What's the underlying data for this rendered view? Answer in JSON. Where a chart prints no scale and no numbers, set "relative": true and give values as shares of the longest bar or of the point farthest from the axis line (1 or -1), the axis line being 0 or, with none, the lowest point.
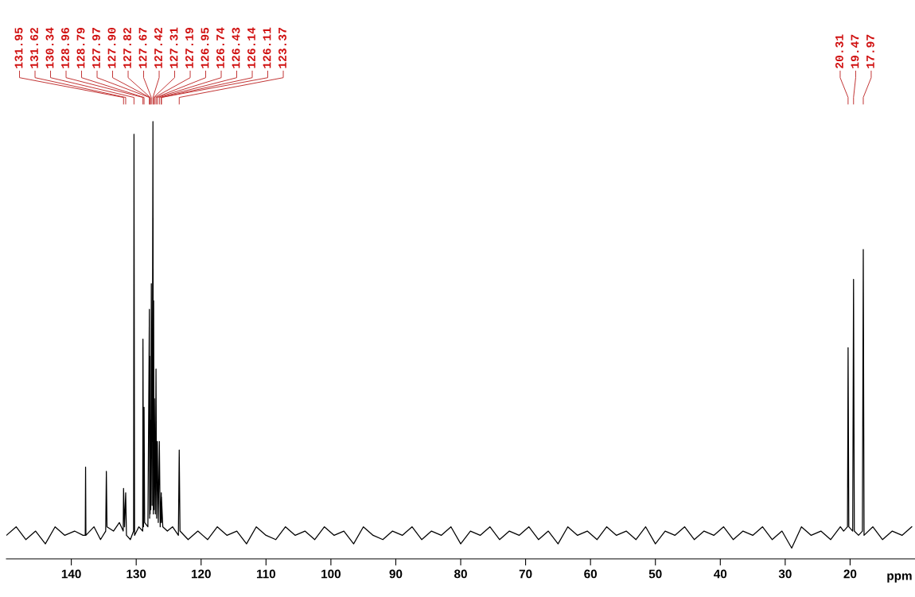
{
  "chart_data": {
    "type": "line",
    "relative": true,
    "xlabel": "ppm",
    "grid": false,
    "marker": "none",
    "line_style": "solid",
    "xlim": [
      150,
      10
    ],
    "xticks": [
      140,
      130,
      120,
      110,
      100,
      90,
      80,
      70,
      60,
      50,
      40,
      30,
      20
    ],
    "series": [
      {
        "color": "#000000",
        "x": [
          150,
          148.5,
          147,
          145.5,
          144,
          142.5,
          141,
          139.5,
          138.2,
          137.85,
          137.8,
          137.75,
          136.5,
          135.5,
          134.7,
          134.6,
          134.5,
          133.5,
          132.6,
          132.0,
          131.95,
          131.8,
          131.62,
          131.5,
          130.9,
          130.4,
          130.34,
          130.25,
          129.6,
          129.0,
          128.96,
          128.87,
          128.79,
          128.7,
          128.2,
          127.97,
          127.93,
          127.9,
          127.86,
          127.82,
          127.75,
          127.67,
          127.55,
          127.42,
          127.36,
          127.31,
          127.25,
          127.19,
          127.05,
          126.95,
          126.85,
          126.74,
          126.6,
          126.43,
          126.3,
          126.14,
          126.12,
          126.11,
          125.9,
          125.2,
          124.4,
          123.5,
          123.37,
          123.25,
          122,
          120.5,
          119,
          117.5,
          116,
          114.5,
          113,
          111.5,
          110,
          108.5,
          107,
          105.5,
          104,
          102.5,
          101,
          99.5,
          98,
          96.5,
          95,
          93.5,
          92,
          90.5,
          89,
          87.5,
          86,
          84.5,
          83,
          81.5,
          80,
          78.5,
          77,
          75.5,
          74,
          72.5,
          71,
          69.5,
          68,
          66.5,
          65,
          63.5,
          62,
          60.5,
          59,
          57.5,
          56,
          54.5,
          53,
          51.5,
          50,
          48.5,
          47,
          45.5,
          44,
          42.5,
          41,
          39.5,
          38,
          36.5,
          35,
          33.5,
          32,
          30.5,
          29,
          27.5,
          26,
          24.5,
          23,
          21.5,
          21.0,
          20.4,
          20.31,
          20.2,
          19.6,
          19.47,
          19.35,
          18.7,
          18.1,
          17.97,
          17.85,
          16.5,
          15,
          13.5,
          12,
          10.5
        ],
        "values": [
          0.03,
          0.05,
          0.02,
          0.04,
          0.01,
          0.05,
          0.03,
          0.04,
          0.03,
          0.03,
          0.19,
          0.03,
          0.05,
          0.02,
          0.04,
          0.18,
          0.05,
          0.04,
          0.06,
          0.04,
          0.14,
          0.05,
          0.13,
          0.03,
          0.02,
          0.04,
          0.97,
          0.03,
          0.05,
          0.04,
          0.49,
          0.05,
          0.33,
          0.06,
          0.05,
          0.56,
          0.07,
          0.45,
          0.08,
          0.3,
          0.09,
          0.62,
          0.1,
          1.0,
          0.08,
          0.58,
          0.09,
          0.35,
          0.08,
          0.42,
          0.07,
          0.25,
          0.06,
          0.25,
          0.05,
          0.13,
          0.06,
          0.12,
          0.05,
          0.04,
          0.05,
          0.03,
          0.23,
          0.04,
          0.02,
          0.04,
          0.02,
          0.05,
          0.03,
          0.04,
          0.01,
          0.05,
          0.03,
          0.02,
          0.05,
          0.03,
          0.04,
          0.02,
          0.05,
          0.03,
          0.04,
          0.01,
          0.05,
          0.03,
          0.02,
          0.04,
          0.03,
          0.05,
          0.02,
          0.04,
          0.03,
          0.05,
          0.01,
          0.04,
          0.03,
          0.05,
          0.02,
          0.04,
          0.03,
          0.05,
          0.02,
          0.04,
          0.01,
          0.05,
          0.03,
          0.04,
          0.02,
          0.05,
          0.03,
          0.04,
          0.02,
          0.05,
          0.01,
          0.04,
          0.03,
          0.05,
          0.02,
          0.04,
          0.03,
          0.05,
          0.02,
          0.04,
          0.03,
          0.05,
          0.02,
          0.04,
          0.0,
          0.05,
          0.03,
          0.04,
          0.02,
          0.05,
          0.04,
          0.05,
          0.47,
          0.05,
          0.04,
          0.63,
          0.04,
          0.03,
          0.04,
          0.7,
          0.03,
          0.05,
          0.02,
          0.04,
          0.03,
          0.05
        ]
      }
    ],
    "annotations": [
      {
        "text": "131.95",
        "x": 131.95
      },
      {
        "text": "131.62",
        "x": 131.62
      },
      {
        "text": "130.34",
        "x": 130.34
      },
      {
        "text": "128.96",
        "x": 128.96
      },
      {
        "text": "128.79",
        "x": 128.79
      },
      {
        "text": "127.97",
        "x": 127.97
      },
      {
        "text": "127.90",
        "x": 127.9
      },
      {
        "text": "127.82",
        "x": 127.82
      },
      {
        "text": "127.67",
        "x": 127.67
      },
      {
        "text": "127.42",
        "x": 127.42
      },
      {
        "text": "127.31",
        "x": 127.31
      },
      {
        "text": "127.19",
        "x": 127.19
      },
      {
        "text": "126.95",
        "x": 126.95
      },
      {
        "text": "126.74",
        "x": 126.74
      },
      {
        "text": "126.43",
        "x": 126.43
      },
      {
        "text": "126.14",
        "x": 126.14
      },
      {
        "text": "126.11",
        "x": 126.11
      },
      {
        "text": "123.37",
        "x": 123.37
      },
      {
        "text": "20.31",
        "x": 20.31
      },
      {
        "text": "19.47",
        "x": 19.47
      },
      {
        "text": "17.97",
        "x": 17.97
      }
    ]
  }
}
